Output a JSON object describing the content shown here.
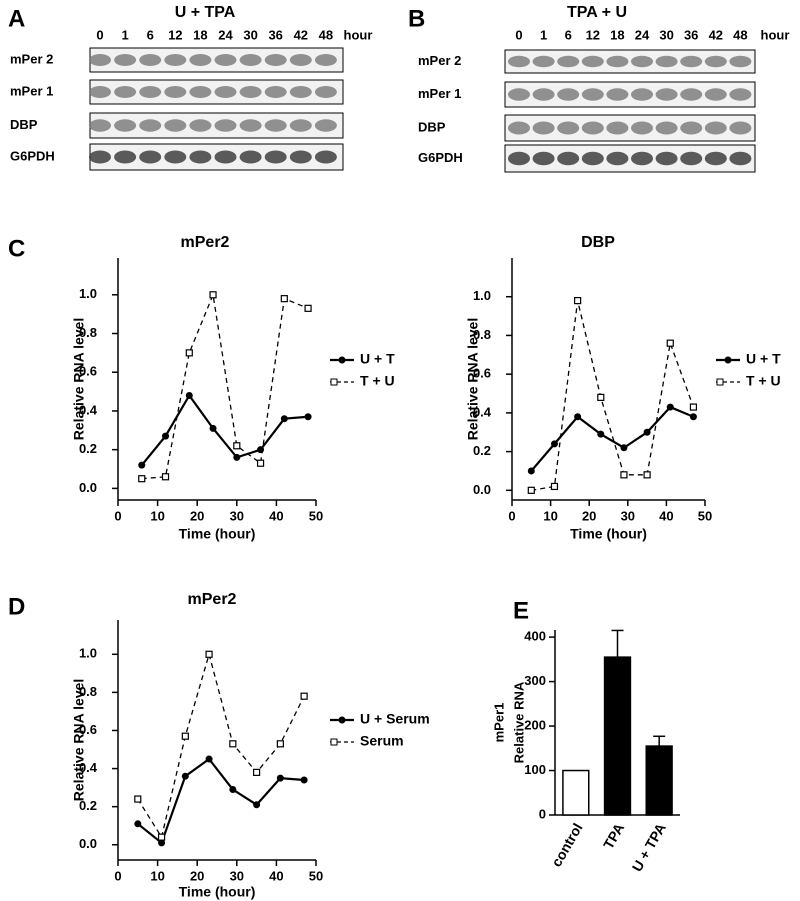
{
  "blots": [
    {
      "panel": "A",
      "title": "U + TPA",
      "hours": [
        "0",
        "1",
        "6",
        "12",
        "18",
        "24",
        "30",
        "36",
        "42",
        "48"
      ],
      "hour_unit": "hour",
      "rows": [
        "mPer 2",
        "mPer 1",
        "DBP",
        "G6PDH"
      ]
    },
    {
      "panel": "B",
      "title": "TPA + U",
      "hours": [
        "0",
        "1",
        "6",
        "12",
        "18",
        "24",
        "30",
        "36",
        "42",
        "48"
      ],
      "hour_unit": "hour",
      "rows": [
        "mPer 2",
        "mPer 1",
        "DBP",
        "G6PDH"
      ]
    }
  ],
  "chart_data": [
    {
      "type": "line",
      "panel": "C",
      "title": "mPer2",
      "xlabel": "Time (hour)",
      "ylabel": "Relative RNA level",
      "x": [
        6,
        12,
        18,
        24,
        30,
        36,
        42,
        48
      ],
      "xlim": [
        0,
        50
      ],
      "xticks": [
        0,
        10,
        20,
        30,
        40,
        50
      ],
      "ylim": [
        -0.06,
        1.19
      ],
      "yticks": [
        {
          "value": 0,
          "label": "0.0"
        },
        {
          "value": 0.2,
          "label": "0.2"
        },
        {
          "value": 0.4,
          "label": "0.4"
        },
        {
          "value": 0.6,
          "label": "0.6"
        },
        {
          "value": 0.8,
          "label": "0.8"
        },
        {
          "value": 1,
          "label": "1.0"
        }
      ],
      "series": [
        {
          "name": "U + T",
          "color": "#000000",
          "marker": "circle",
          "dashed": false,
          "values": [
            0.12,
            0.27,
            0.48,
            0.31,
            0.16,
            0.2,
            0.36,
            0.37
          ]
        },
        {
          "name": "T + U",
          "color": "#000000",
          "marker": "square",
          "dashed": true,
          "values": [
            0.05,
            0.06,
            0.7,
            1.0,
            0.22,
            0.13,
            0.98,
            0.93
          ]
        }
      ]
    },
    {
      "type": "line",
      "title": "DBP",
      "xlabel": "Time (hour)",
      "ylabel": "Relative RNA level",
      "x": [
        5,
        11,
        17,
        23,
        29,
        35,
        41,
        47
      ],
      "xlim": [
        0,
        50
      ],
      "xticks": [
        0,
        10,
        20,
        30,
        40,
        50
      ],
      "ylim": [
        -0.05,
        1.2
      ],
      "yticks": [
        {
          "value": 0,
          "label": "0.0"
        },
        {
          "value": 0.2,
          "label": "0.2"
        },
        {
          "value": 0.4,
          "label": "0.4"
        },
        {
          "value": 0.6,
          "label": "0.6"
        },
        {
          "value": 0.8,
          "label": "0.8"
        },
        {
          "value": 1,
          "label": "1.0"
        }
      ],
      "series": [
        {
          "name": "U + T",
          "color": "#000000",
          "marker": "circle",
          "dashed": false,
          "values": [
            0.1,
            0.24,
            0.38,
            0.29,
            0.22,
            0.3,
            0.43,
            0.38
          ]
        },
        {
          "name": "T + U",
          "color": "#000000",
          "marker": "square",
          "dashed": true,
          "values": [
            0.0,
            0.02,
            0.98,
            0.48,
            0.08,
            0.08,
            0.76,
            0.43
          ]
        }
      ]
    },
    {
      "type": "line",
      "panel": "D",
      "title": "mPer2",
      "xlabel": "Time (hour)",
      "ylabel": "Relative RNA level",
      "x": [
        5,
        11,
        17,
        23,
        29,
        35,
        41,
        47
      ],
      "xlim": [
        0,
        50
      ],
      "xticks": [
        0,
        10,
        20,
        30,
        40,
        50
      ],
      "ylim": [
        -0.08,
        1.18
      ],
      "yticks": [
        {
          "value": 0,
          "label": "0.0"
        },
        {
          "value": 0.2,
          "label": "0.2"
        },
        {
          "value": 0.4,
          "label": "0.4"
        },
        {
          "value": 0.6,
          "label": "0.6"
        },
        {
          "value": 0.8,
          "label": "0.8"
        },
        {
          "value": 1,
          "label": "1.0"
        }
      ],
      "series": [
        {
          "name": "U + Serum",
          "color": "#000000",
          "marker": "circle",
          "dashed": false,
          "values": [
            0.11,
            0.01,
            0.36,
            0.45,
            0.29,
            0.21,
            0.35,
            0.34
          ]
        },
        {
          "name": "Serum",
          "color": "#000000",
          "marker": "square",
          "dashed": true,
          "values": [
            0.24,
            0.04,
            0.57,
            1.0,
            0.53,
            0.38,
            0.53,
            0.78
          ]
        }
      ]
    },
    {
      "type": "bar",
      "panel": "E",
      "ylabel": [
        "mPer1",
        "Relative RNA"
      ],
      "categories": [
        "control",
        "TPA",
        "U + TPA"
      ],
      "values": [
        100,
        355,
        155
      ],
      "errors": [
        null,
        60,
        22
      ],
      "colors": [
        "#ffffff",
        "#000000",
        "#000000"
      ],
      "ylim": [
        0,
        416
      ],
      "yticks": [
        0,
        100,
        200,
        300,
        400
      ]
    }
  ]
}
